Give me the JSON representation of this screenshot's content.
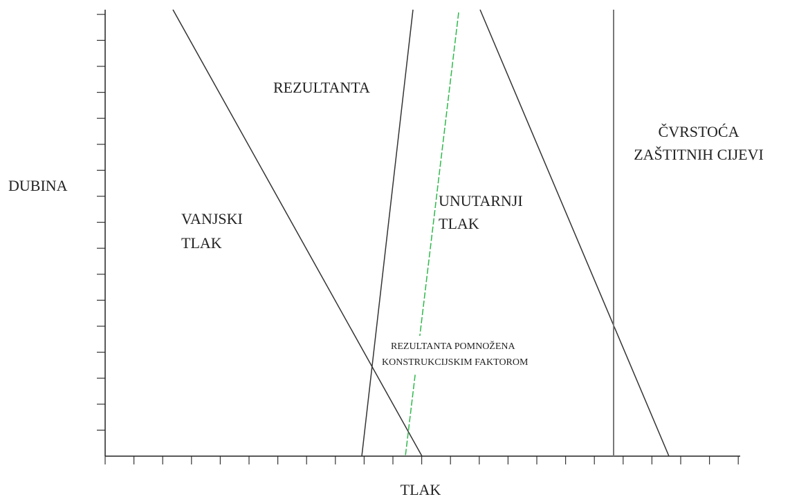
{
  "axes": {
    "y_label": "DUBINA",
    "x_label": "TLAK"
  },
  "curves": {
    "external": [
      "VANJSKI",
      "TLAK"
    ],
    "resultant": "REZULTANTA",
    "internal": [
      "UNUTARNJI",
      "TLAK"
    ],
    "casing_strength": [
      "ČVRSTOĆA",
      "ZAŠTITNIH CIJEVI"
    ],
    "design_resultant": [
      "REZULTANTA POMNOŽENA",
      "KONSTRUKCIJSKIM FAKTOROM"
    ]
  }
}
